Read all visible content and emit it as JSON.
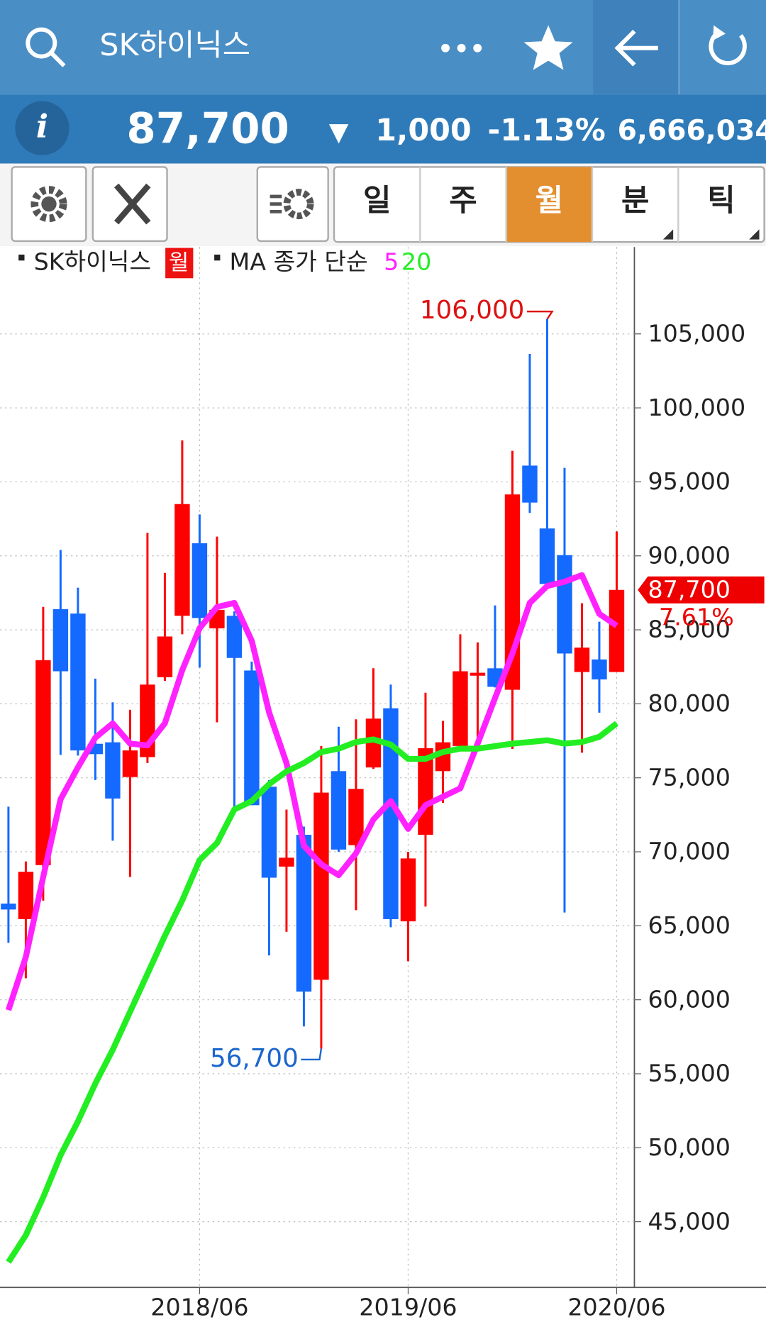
{
  "header": {
    "title": "SK하이닉스"
  },
  "quote": {
    "price": "87,700",
    "direction": "▼",
    "change": "1,000",
    "change_pct": "-1.13%",
    "volume": "6,666,034"
  },
  "toolbar": {
    "tabs": [
      "일",
      "주",
      "월",
      "분",
      "틱"
    ],
    "active_tab": 2
  },
  "chart_data": {
    "type": "candlestick",
    "ma_label": "MA 종가 단순",
    "categories": [
      null,
      null,
      null,
      null,
      null,
      null,
      null,
      null,
      null,
      null,
      null,
      "2018/06",
      null,
      null,
      null,
      null,
      null,
      null,
      null,
      null,
      null,
      null,
      null,
      "2019/06",
      null,
      null,
      null,
      null,
      null,
      null,
      null,
      null,
      null,
      null,
      null,
      "2020/06"
    ],
    "series": [
      {
        "name": "SK하이닉스",
        "tag": "월",
        "up_color": "#ff0000",
        "down_color": "#1469ff",
        "open": [
          66500,
          65450,
          69100,
          86400,
          86100,
          77300,
          77400,
          75050,
          76400,
          81800,
          85950,
          90850,
          85100,
          85950,
          82250,
          74400,
          69000,
          71150,
          61350,
          75450,
          70450,
          75700,
          79700,
          65300,
          71150,
          75450,
          77150,
          81900,
          82400,
          80950,
          96100,
          91850,
          90050,
          82150,
          83000,
          82150
        ],
        "high": [
          73050,
          69350,
          86550,
          90400,
          87850,
          81700,
          80100,
          79600,
          91550,
          88850,
          97800,
          92800,
          91300,
          86250,
          82850,
          74850,
          72850,
          71700,
          77150,
          78450,
          78950,
          82400,
          81300,
          70000,
          80750,
          78850,
          84700,
          84150,
          86650,
          97100,
          103650,
          106000,
          95950,
          86800,
          85550,
          91650
        ],
        "low": [
          63850,
          61450,
          66700,
          76550,
          76500,
          74850,
          70750,
          68300,
          76000,
          81550,
          84700,
          82450,
          78750,
          72600,
          73150,
          63000,
          64600,
          58200,
          56700,
          70000,
          66050,
          75600,
          64900,
          62600,
          66300,
          73300,
          77100,
          76950,
          81100,
          76950,
          92900,
          88050,
          65900,
          76700,
          79400,
          82150
        ],
        "close": [
          66100,
          68650,
          82950,
          82200,
          76850,
          76600,
          73600,
          76850,
          81300,
          84550,
          93500,
          85800,
          86350,
          83100,
          73150,
          68250,
          69600,
          60550,
          74000,
          70150,
          74250,
          79000,
          65450,
          69550,
          77000,
          77400,
          82200,
          82100,
          81150,
          94150,
          93600,
          88100,
          83400,
          83800,
          81650,
          87700
        ]
      },
      {
        "name": "5",
        "color": "#ff22ff",
        "values": [
          59300,
          62890,
          68300,
          73550,
          75710,
          77710,
          78680,
          77310,
          77190,
          78680,
          82270,
          85110,
          86540,
          86820,
          84260,
          79420,
          76000,
          70410,
          69160,
          68420,
          69900,
          72180,
          73430,
          71550,
          73150,
          73720,
          74290,
          77310,
          80390,
          83400,
          86820,
          87960,
          88250,
          88700,
          86080,
          85280
        ]
      },
      {
        "name": "20",
        "color": "#22ee22",
        "values": [
          42270,
          44090,
          46650,
          49500,
          51780,
          54340,
          56620,
          59190,
          61750,
          64320,
          66710,
          69440,
          70590,
          72860,
          73430,
          74570,
          75430,
          76000,
          76740,
          76970,
          77420,
          77590,
          77250,
          76280,
          76280,
          76740,
          76970,
          76970,
          77140,
          77310,
          77420,
          77540,
          77310,
          77420,
          77770,
          78680
        ]
      }
    ],
    "ylim": [
      40560,
      110870
    ],
    "yticks": [
      {
        "value": 45000,
        "label": "45,000"
      },
      {
        "value": 50000,
        "label": "50,000"
      },
      {
        "value": 55000,
        "label": "55,000"
      },
      {
        "value": 60000,
        "label": "60,000"
      },
      {
        "value": 65000,
        "label": "65,000"
      },
      {
        "value": 70000,
        "label": "70,000"
      },
      {
        "value": 75000,
        "label": "75,000"
      },
      {
        "value": 80000,
        "label": "80,000"
      },
      {
        "value": 85000,
        "label": "85,000"
      },
      {
        "value": 90000,
        "label": "90,000"
      },
      {
        "value": 95000,
        "label": "95,000"
      },
      {
        "value": 100000,
        "label": "100,000"
      },
      {
        "value": 105000,
        "label": "105,000"
      }
    ],
    "grid": true,
    "annotations": [
      {
        "value": 106000,
        "label": "106,000",
        "color": "#dd1111"
      },
      {
        "value": 56700,
        "label": "56,700",
        "color": "#1a66cc"
      }
    ],
    "last_price": {
      "value": 87700,
      "label": "87,700",
      "color": "#ee0000"
    },
    "last_note": "7.61%"
  }
}
